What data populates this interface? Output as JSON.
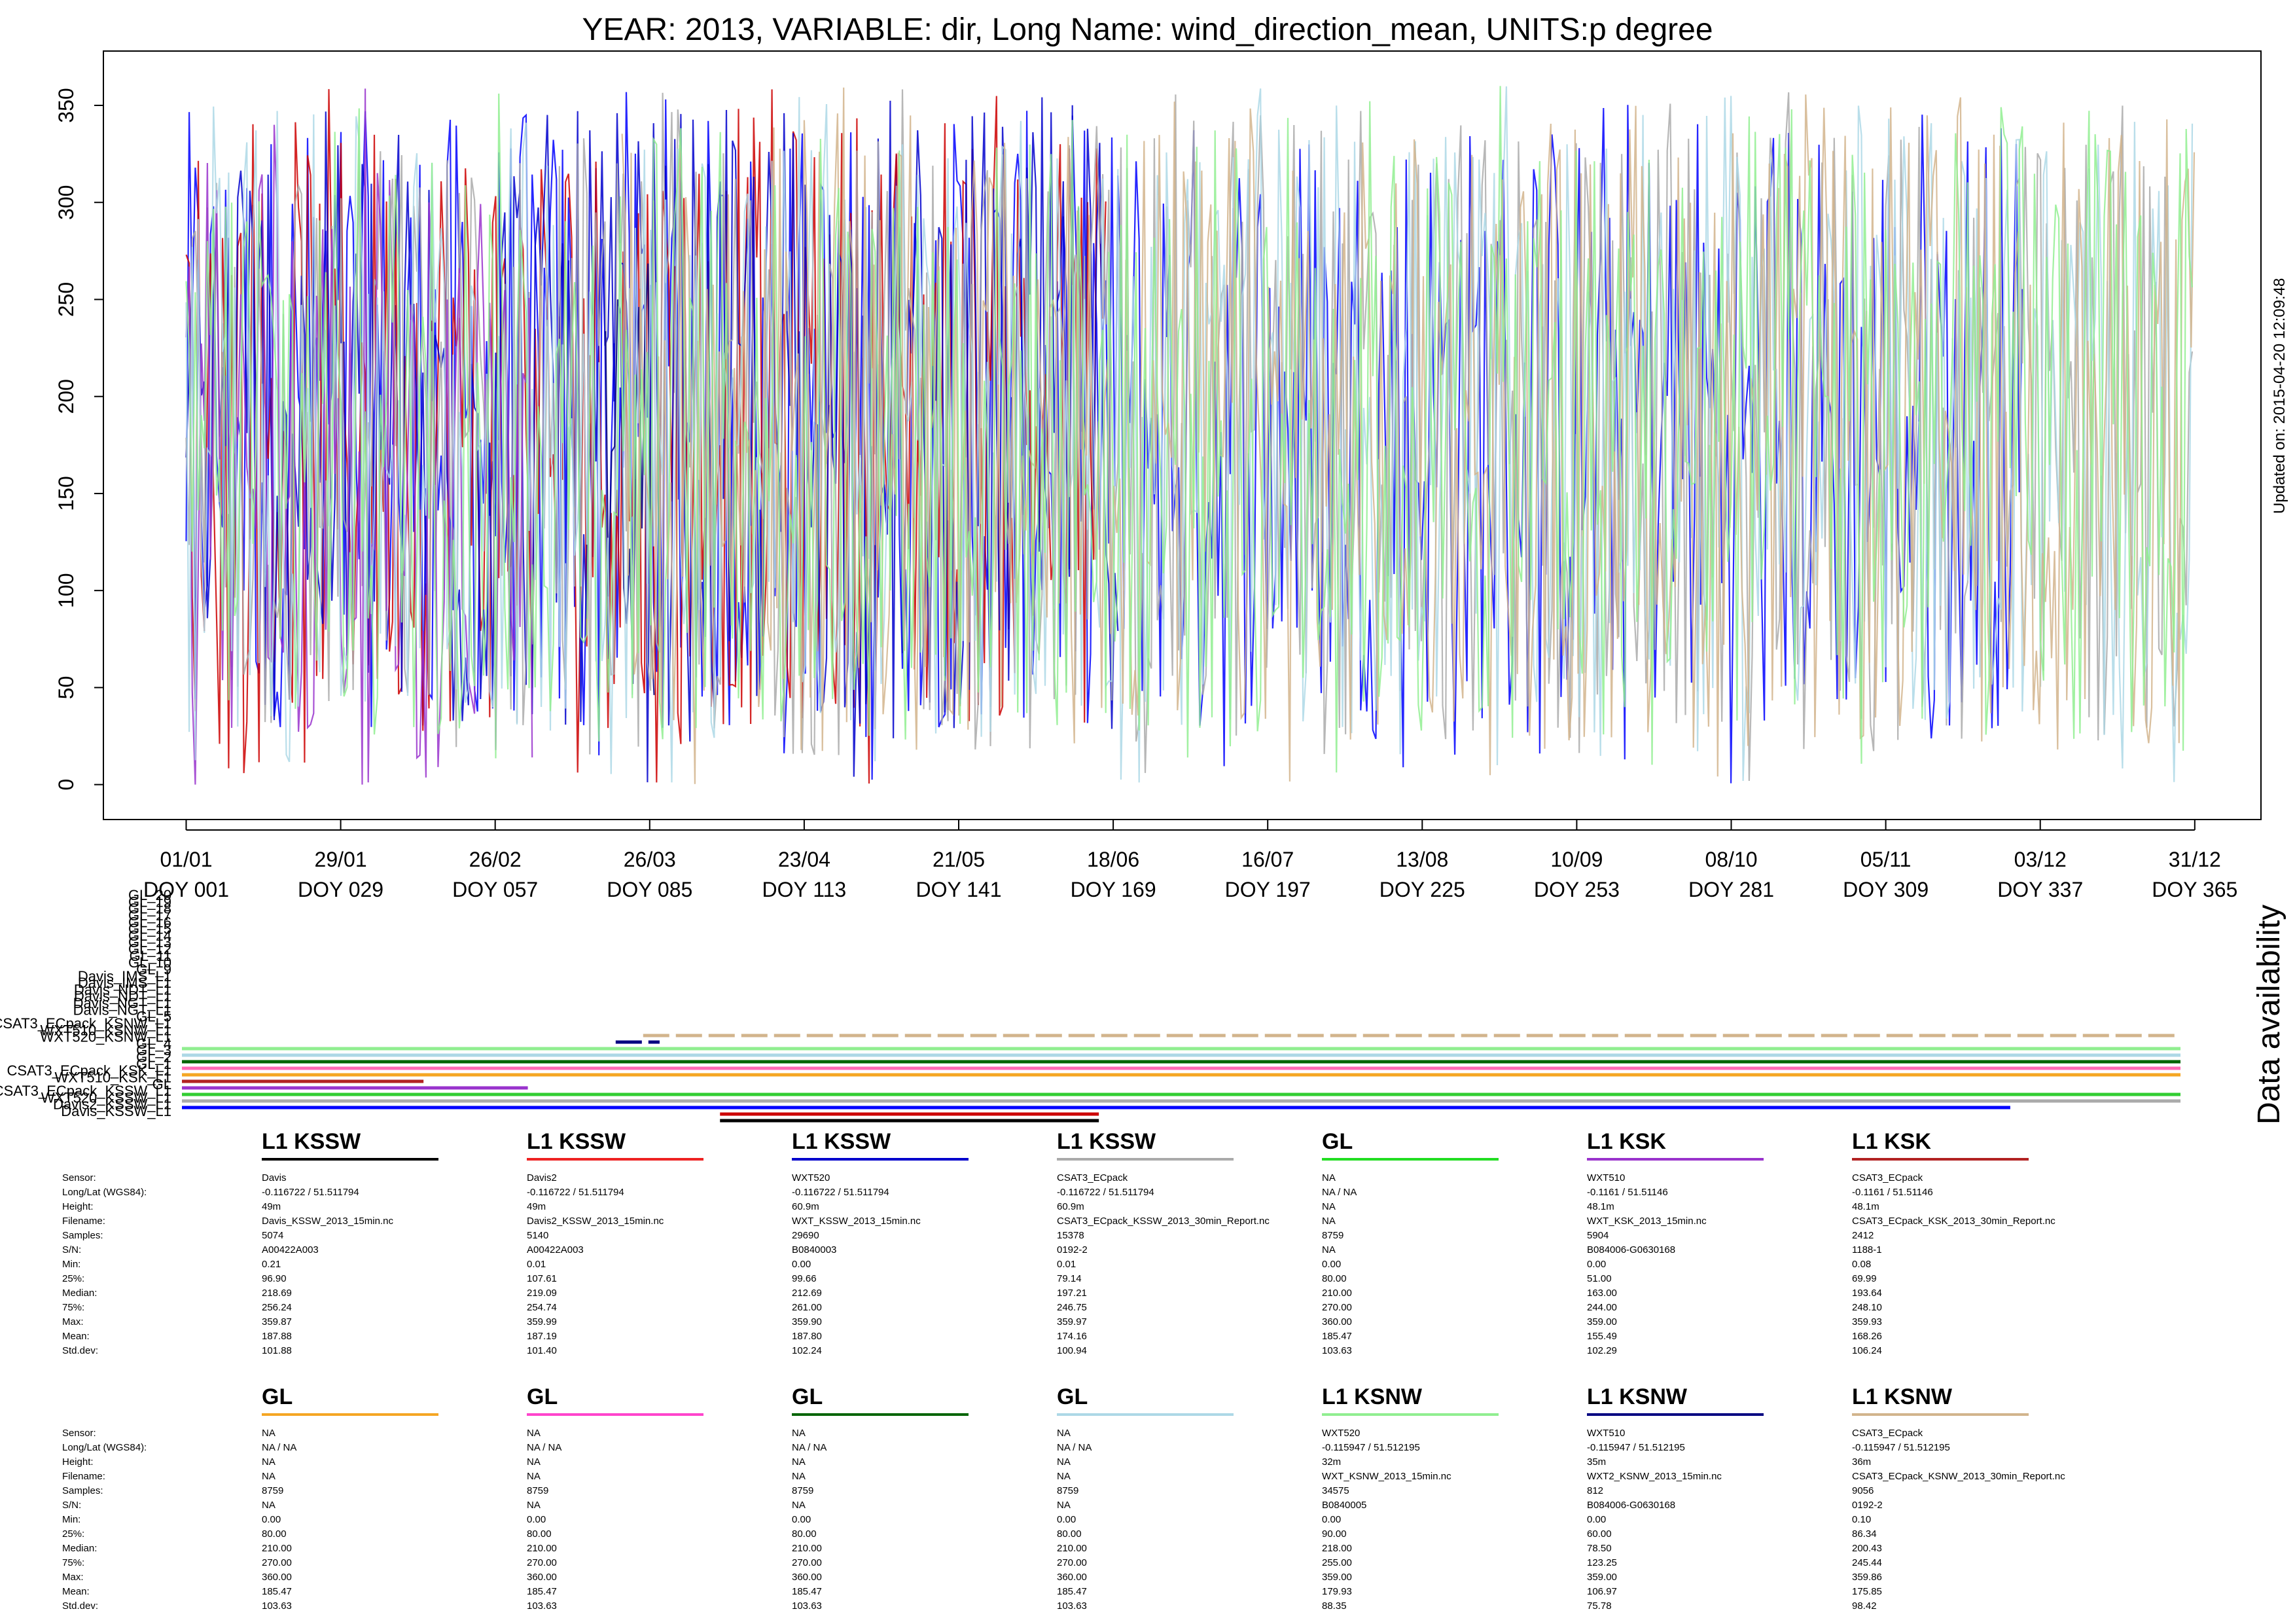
{
  "title": "YEAR: 2013, VARIABLE: dir, Long Name: wind_direction_mean, UNITS:p degree",
  "updated": "Updated on: 2015-04-20 12:09:48",
  "availability_title": "Data availability",
  "chart_data": {
    "type": "line",
    "x_ticks": [
      {
        "date": "01/01",
        "doy": "DOY 001",
        "x": 1
      },
      {
        "date": "29/01",
        "doy": "DOY 029",
        "x": 29
      },
      {
        "date": "26/02",
        "doy": "DOY 057",
        "x": 57
      },
      {
        "date": "26/03",
        "doy": "DOY 085",
        "x": 85
      },
      {
        "date": "23/04",
        "doy": "DOY 113",
        "x": 113
      },
      {
        "date": "21/05",
        "doy": "DOY 141",
        "x": 141
      },
      {
        "date": "18/06",
        "doy": "DOY 169",
        "x": 169
      },
      {
        "date": "16/07",
        "doy": "DOY 197",
        "x": 197
      },
      {
        "date": "13/08",
        "doy": "DOY 225",
        "x": 225
      },
      {
        "date": "10/09",
        "doy": "DOY 253",
        "x": 253
      },
      {
        "date": "08/10",
        "doy": "DOY 281",
        "x": 281
      },
      {
        "date": "05/11",
        "doy": "DOY 309",
        "x": 309
      },
      {
        "date": "03/12",
        "doy": "DOY 337",
        "x": 337
      },
      {
        "date": "31/12",
        "doy": "DOY 365",
        "x": 365
      }
    ],
    "y_ticks": [
      0,
      50,
      100,
      150,
      200,
      250,
      300,
      350
    ],
    "xlim": [
      -14,
      377
    ],
    "ylim": [
      -18,
      378
    ],
    "series": [
      {
        "color": "#0000ff",
        "start": 1,
        "end": 334,
        "mean": 187.88
      },
      {
        "color": "#cc0000",
        "start": 1,
        "end": 168,
        "mean": 187.19
      },
      {
        "color": "#0000cc",
        "start": 1,
        "end": 170,
        "mean": 187.8
      },
      {
        "color": "#aaaaaa",
        "start": 1,
        "end": 365,
        "mean": 174.16
      },
      {
        "color": "#9933cc",
        "start": 1,
        "end": 64,
        "mean": 155.49
      },
      {
        "color": "#000080",
        "start": 77,
        "end": 86,
        "mean": 106.97
      },
      {
        "color": "#add8e6",
        "start": 1,
        "end": 365,
        "mean": 185.47
      },
      {
        "color": "#d2b48c",
        "start": 80,
        "end": 365,
        "mean": 175.85
      },
      {
        "color": "#90ee90",
        "start": 1,
        "end": 365,
        "mean": 179.93
      }
    ]
  },
  "availability": {
    "labels": [
      "GL_20",
      "GL_19",
      "GL_18",
      "GL_17",
      "GL_16",
      "GL_15",
      "GL_14",
      "GL_13",
      "GL_12",
      "GL_11",
      "GL_10",
      "GL_9",
      "Davis_IMS_L1",
      "Davis_IMS_L1",
      "Davis_NDT_L1",
      "Davis_NDT_L1",
      "Davis_NGT_L1",
      "Davis_NGT_L1",
      "GL_5",
      "CSAT3_ECpack_KSNW_L1",
      "WXT510_KSNW_L1",
      "WXT520_KSNW_L1",
      "GL_4",
      "GL_3",
      "GL_2",
      "GL_1",
      "CSAT3_ECpack_KSK_L1",
      "WXT510_KSK_L1",
      "GL",
      "CSAT3_ECpack_KSSW_L1",
      "WXT520_KSSW_L1",
      "Davis2_KSSW_L1",
      "Davis_KSSW_L1"
    ],
    "bars": [
      {
        "color": "#d2b48c",
        "start": 85,
        "end": 365,
        "dashed": true
      },
      {
        "color": "#000080",
        "start": 80,
        "end": 88,
        "dashed": true
      },
      {
        "color": "#90ee90",
        "start": 1,
        "end": 365
      },
      {
        "color": "#add8e6",
        "start": 1,
        "end": 365
      },
      {
        "color": "#006400",
        "start": 1,
        "end": 365
      },
      {
        "color": "#ff69b4",
        "start": 1,
        "end": 365
      },
      {
        "color": "#f5a623",
        "start": 1,
        "end": 365
      },
      {
        "color": "#b22222",
        "start": 1,
        "end": 45
      },
      {
        "color": "#9933cc",
        "start": 1,
        "end": 64
      },
      {
        "color": "#32cd32",
        "start": 1,
        "end": 365
      },
      {
        "color": "#aaaaaa",
        "start": 1,
        "end": 365
      },
      {
        "color": "#0000ff",
        "start": 1,
        "end": 334
      },
      {
        "color": "#cc0000",
        "start": 99,
        "end": 168
      },
      {
        "color": "#000000",
        "start": 99,
        "end": 168
      }
    ]
  },
  "stats_labels": [
    "Sensor:",
    "Long/Lat (WGS84):",
    "Height:",
    "Filename:",
    "Samples:",
    "S/N:",
    "Min:",
    "25%:",
    "Median:",
    "75%:",
    "Max:",
    "Mean:",
    "Std.dev:"
  ],
  "panels_row1": [
    {
      "header": "L1 KSSW",
      "color": "#000000",
      "values": [
        "Davis",
        "-0.116722 / 51.511794",
        "49m",
        "Davis_KSSW_2013_15min.nc",
        "5074",
        "A00422A003",
        "0.21",
        "96.90",
        "218.69",
        "256.24",
        "359.87",
        "187.88",
        "101.88"
      ]
    },
    {
      "header": "L1 KSSW",
      "color": "#ee2222",
      "values": [
        "Davis2",
        "-0.116722 / 51.511794",
        "49m",
        "Davis2_KSSW_2013_15min.nc",
        "5140",
        "A00422A003",
        "0.01",
        "107.61",
        "219.09",
        "254.74",
        "359.99",
        "187.19",
        "101.40"
      ]
    },
    {
      "header": "L1 KSSW",
      "color": "#0000cc",
      "values": [
        "WXT520",
        "-0.116722 / 51.511794",
        "60.9m",
        "WXT_KSSW_2013_15min.nc",
        "29690",
        "B0840003",
        "0.00",
        "99.66",
        "212.69",
        "261.00",
        "359.90",
        "187.80",
        "102.24"
      ]
    },
    {
      "header": "L1 KSSW",
      "color": "#aaaaaa",
      "values": [
        "CSAT3_ECpack",
        "-0.116722 / 51.511794",
        "60.9m",
        "CSAT3_ECpack_KSSW_2013_30min_Report.nc",
        "15378",
        "0192-2",
        "0.01",
        "79.14",
        "197.21",
        "246.75",
        "359.97",
        "174.16",
        "100.94"
      ]
    },
    {
      "header": "GL",
      "color": "#22dd22",
      "values": [
        "NA",
        "NA / NA",
        "NA",
        "NA",
        "8759",
        "NA",
        "0.00",
        "80.00",
        "210.00",
        "270.00",
        "360.00",
        "185.47",
        "103.63"
      ]
    },
    {
      "header": "L1 KSK",
      "color": "#9933cc",
      "values": [
        "WXT510",
        "-0.1161 / 51.51146",
        "48.1m",
        "WXT_KSK_2013_15min.nc",
        "5904",
        "B084006-G0630168",
        "0.00",
        "51.00",
        "163.00",
        "244.00",
        "359.00",
        "155.49",
        "102.29"
      ]
    },
    {
      "header": "L1 KSK",
      "color": "#b22222",
      "values": [
        "CSAT3_ECpack",
        "-0.1161 / 51.51146",
        "48.1m",
        "CSAT3_ECpack_KSK_2013_30min_Report.nc",
        "2412",
        "1188-1",
        "0.08",
        "69.99",
        "193.64",
        "248.10",
        "359.93",
        "168.26",
        "106.24"
      ]
    }
  ],
  "panels_row2": [
    {
      "header": "GL",
      "color": "#f5a623",
      "values": [
        "NA",
        "NA / NA",
        "NA",
        "NA",
        "8759",
        "NA",
        "0.00",
        "80.00",
        "210.00",
        "270.00",
        "360.00",
        "185.47",
        "103.63"
      ]
    },
    {
      "header": "GL",
      "color": "#ff44cc",
      "values": [
        "NA",
        "NA / NA",
        "NA",
        "NA",
        "8759",
        "NA",
        "0.00",
        "80.00",
        "210.00",
        "270.00",
        "360.00",
        "185.47",
        "103.63"
      ]
    },
    {
      "header": "GL",
      "color": "#006400",
      "values": [
        "NA",
        "NA / NA",
        "NA",
        "NA",
        "8759",
        "NA",
        "0.00",
        "80.00",
        "210.00",
        "270.00",
        "360.00",
        "185.47",
        "103.63"
      ]
    },
    {
      "header": "GL",
      "color": "#add8e6",
      "values": [
        "NA",
        "NA / NA",
        "NA",
        "NA",
        "8759",
        "NA",
        "0.00",
        "80.00",
        "210.00",
        "270.00",
        "360.00",
        "185.47",
        "103.63"
      ]
    },
    {
      "header": "L1 KSNW",
      "color": "#90ee90",
      "values": [
        "WXT520",
        "-0.115947 / 51.512195",
        "32m",
        "WXT_KSNW_2013_15min.nc",
        "34575",
        "B0840005",
        "0.00",
        "90.00",
        "218.00",
        "255.00",
        "359.00",
        "179.93",
        "88.35"
      ]
    },
    {
      "header": "L1 KSNW",
      "color": "#000080",
      "values": [
        "WXT510",
        "-0.115947 / 51.512195",
        "35m",
        "WXT2_KSNW_2013_15min.nc",
        "812",
        "B084006-G0630168",
        "0.00",
        "60.00",
        "78.50",
        "123.25",
        "359.00",
        "106.97",
        "75.78"
      ]
    },
    {
      "header": "L1 KSNW",
      "color": "#d2b48c",
      "values": [
        "CSAT3_ECpack",
        "-0.115947 / 51.512195",
        "36m",
        "CSAT3_ECpack_KSNW_2013_30min_Report.nc",
        "9056",
        "0192-2",
        "0.10",
        "86.34",
        "200.43",
        "245.44",
        "359.86",
        "175.85",
        "98.42"
      ]
    }
  ]
}
